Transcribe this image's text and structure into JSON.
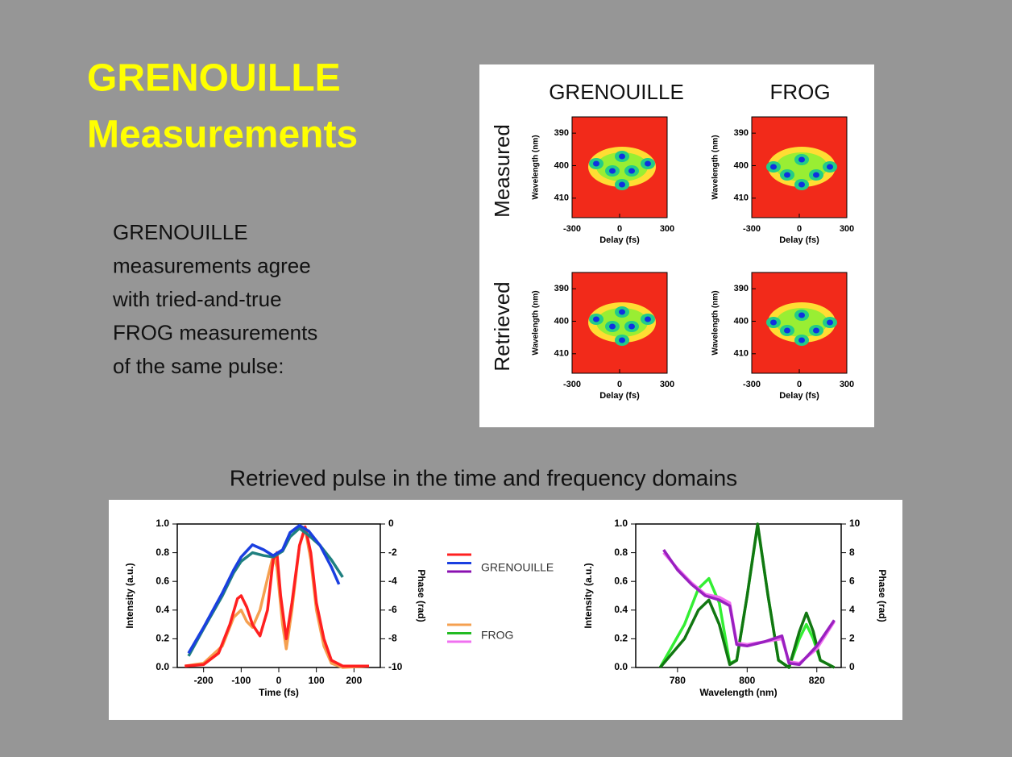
{
  "slide": {
    "title_lines": [
      "GRENOUILLE",
      "Measurements"
    ],
    "body_lines": [
      "GRENOUILLE",
      "measurements agree",
      "with tried-and-true",
      "FROG measurements",
      "of the same pulse:"
    ],
    "caption": "Retrieved pulse in the time and frequency domains"
  },
  "traces": {
    "column_titles": [
      "GRENOUILLE",
      "FROG"
    ],
    "row_titles": [
      "Measured",
      "Retrieved"
    ],
    "ylabel": "Wavelength (nm)",
    "xlabel": "Delay (fs)",
    "xticks": [
      -300,
      0,
      300
    ],
    "yticks": [
      390,
      400,
      410
    ],
    "xlim": [
      -300,
      300
    ],
    "ylim": [
      385,
      416
    ]
  },
  "legend": [
    {
      "label": "GRENOUILLE",
      "colors": [
        "#ff2020",
        "#1a3fe0",
        "#8a10b0"
      ]
    },
    {
      "label": "FROG",
      "colors": [
        "#f5a050",
        "#22bb22",
        "#f070f0"
      ]
    }
  ],
  "chart_data": [
    {
      "type": "line",
      "xlabel": "Time (fs)",
      "ylabel": "Intensity (a.u.)",
      "y2label": "Phase (rad)",
      "xlim": [
        -270,
        270
      ],
      "xticks": [
        -200,
        -100,
        0,
        100,
        200
      ],
      "ylim": [
        0,
        1
      ],
      "yticks": [
        {
          "value": 0,
          "label": "0.0"
        },
        0.2,
        0.4,
        0.6,
        0.8,
        {
          "value": 1,
          "label": "1.0"
        }
      ],
      "y2lim": [
        -10,
        0
      ],
      "y2ticks": [
        -10,
        -8,
        -6,
        -4,
        -2,
        0
      ],
      "series": [
        {
          "color": "#f5a050",
          "x": [
            -250,
            -200,
            -150,
            -120,
            -100,
            -85,
            -70,
            -50,
            -30,
            -15,
            -5,
            10,
            20,
            35,
            55,
            70,
            85,
            100,
            120,
            140,
            170,
            240
          ],
          "values": [
            0.01,
            0.03,
            0.15,
            0.35,
            0.4,
            0.32,
            0.28,
            0.4,
            0.62,
            0.78,
            0.7,
            0.3,
            0.13,
            0.4,
            0.85,
            0.97,
            0.75,
            0.4,
            0.15,
            0.03,
            0,
            0.01
          ]
        },
        {
          "color": "#ff2020",
          "x": [
            -250,
            -200,
            -160,
            -130,
            -110,
            -100,
            -85,
            -70,
            -50,
            -30,
            -15,
            -5,
            5,
            20,
            35,
            55,
            70,
            85,
            100,
            120,
            140,
            170,
            240
          ],
          "values": [
            0.01,
            0.02,
            0.1,
            0.3,
            0.48,
            0.5,
            0.42,
            0.3,
            0.22,
            0.4,
            0.75,
            0.8,
            0.5,
            0.2,
            0.45,
            0.85,
            0.98,
            0.8,
            0.45,
            0.2,
            0.05,
            0.01,
            0.01
          ]
        },
        {
          "color": "#1f8080",
          "axis": "y2",
          "x": [
            -240,
            -200,
            -150,
            -120,
            -100,
            -70,
            -40,
            -15,
            10,
            30,
            55,
            80,
            110,
            140,
            170
          ],
          "values": [
            -9.2,
            -7.3,
            -5.0,
            -3.4,
            -2.6,
            -2.0,
            -2.2,
            -2.3,
            -1.9,
            -0.9,
            -0.3,
            -0.8,
            -1.5,
            -2.5,
            -3.7
          ]
        },
        {
          "color": "#1a3fe0",
          "axis": "y2",
          "x": [
            -240,
            -200,
            -150,
            -120,
            -100,
            -70,
            -40,
            -15,
            10,
            30,
            55,
            80,
            110,
            140,
            160
          ],
          "values": [
            -9.0,
            -7.2,
            -4.8,
            -3.2,
            -2.3,
            -1.45,
            -1.8,
            -2.2,
            -1.8,
            -0.6,
            -0.1,
            -0.5,
            -1.5,
            -3.0,
            -4.2
          ]
        }
      ]
    },
    {
      "type": "line",
      "xlabel": "Wavelength (nm)",
      "ylabel": "Intensity (a.u.)",
      "y2label": "Phase (rad)",
      "xlim": [
        768,
        827
      ],
      "xticks": [
        780,
        800,
        820
      ],
      "ylim": [
        0,
        1
      ],
      "yticks": [
        {
          "value": 0,
          "label": "0.0"
        },
        0.2,
        0.4,
        0.6,
        0.8,
        {
          "value": 1,
          "label": "1.0"
        }
      ],
      "y2lim": [
        0,
        10
      ],
      "y2ticks": [
        0,
        2,
        4,
        6,
        8,
        10
      ],
      "series": [
        {
          "color": "#33ee33",
          "x": [
            775,
            782,
            786,
            789,
            792,
            795,
            797,
            800,
            803,
            806,
            809,
            812,
            815,
            817,
            819,
            821,
            825
          ],
          "values": [
            0,
            0.3,
            0.55,
            0.62,
            0.45,
            0.03,
            0.05,
            0.5,
            0.99,
            0.5,
            0.05,
            0,
            0.2,
            0.3,
            0.2,
            0.05,
            0
          ]
        },
        {
          "color": "#117711",
          "x": [
            775,
            782,
            786,
            789,
            792,
            795,
            797,
            800,
            803,
            806,
            809,
            812,
            815,
            817,
            819,
            821,
            825
          ],
          "values": [
            0,
            0.2,
            0.4,
            0.47,
            0.3,
            0.02,
            0.05,
            0.5,
            1.0,
            0.5,
            0.05,
            0,
            0.25,
            0.38,
            0.25,
            0.05,
            0
          ]
        },
        {
          "color": "#f070f0",
          "axis": "y2",
          "x": [
            776,
            780,
            784,
            788,
            792,
            795,
            797,
            800,
            805,
            810,
            812,
            815,
            820,
            825
          ],
          "values": [
            8.0,
            6.9,
            5.9,
            5.1,
            4.9,
            4.5,
            1.7,
            1.6,
            1.8,
            2.0,
            0.4,
            0.3,
            1.3,
            3.2
          ]
        },
        {
          "color": "#9a20c0",
          "axis": "y2",
          "x": [
            776,
            780,
            784,
            788,
            792,
            795,
            797,
            800,
            805,
            810,
            812,
            815,
            820,
            825
          ],
          "values": [
            8.2,
            6.8,
            5.8,
            5.0,
            4.7,
            4.3,
            1.6,
            1.5,
            1.8,
            2.2,
            0.3,
            0.2,
            1.5,
            3.3
          ]
        }
      ]
    }
  ]
}
